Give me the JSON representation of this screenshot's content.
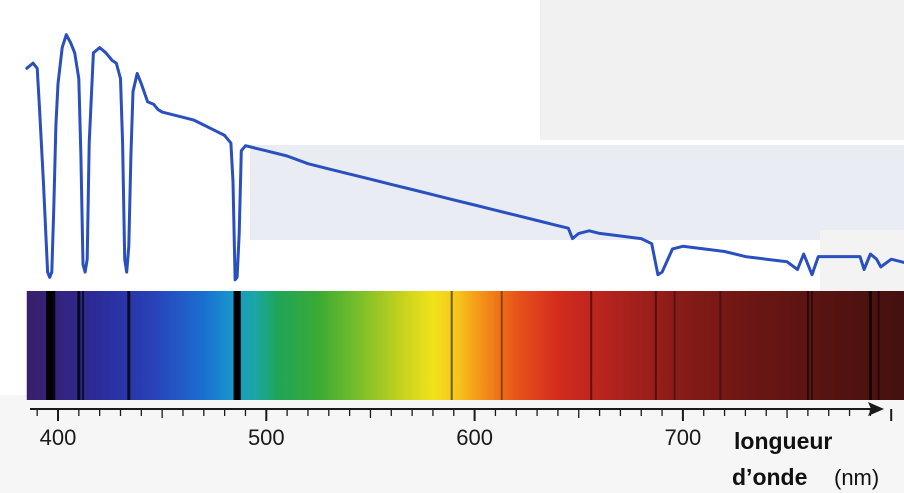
{
  "chart_data": {
    "type": "line",
    "xlim": [
      385,
      845
    ],
    "x_ticks": [
      400,
      500,
      600,
      700
    ],
    "x_tick_labels": [
      "400",
      "500",
      "600",
      "700"
    ],
    "xlabel": {
      "bold": "longueur d’onde",
      "unit": "(nm)"
    },
    "line_color": "#2a4fbf",
    "series": [
      {
        "x": [
          385,
          388,
          390,
          391,
          393,
          395,
          396,
          397,
          398,
          399,
          400,
          402,
          404,
          406,
          408,
          410,
          411,
          412,
          413,
          414,
          415,
          417,
          420,
          423,
          426,
          428,
          430,
          431,
          432,
          433,
          434,
          435,
          436,
          438,
          440,
          443,
          446,
          448,
          450,
          455,
          460,
          465,
          470,
          475,
          480,
          483,
          484,
          485,
          486,
          487,
          488,
          490,
          495,
          500,
          510,
          520,
          530,
          540,
          550,
          560,
          570,
          580,
          590,
          600,
          610,
          620,
          630,
          640,
          645,
          647,
          650,
          655,
          660,
          670,
          680,
          685,
          688,
          690,
          695,
          700,
          710,
          720,
          730,
          740,
          750,
          755,
          758,
          760,
          762,
          765,
          770,
          775,
          780,
          785,
          787,
          790,
          793,
          795,
          800,
          805,
          810,
          815,
          820,
          825,
          830,
          834,
          836,
          838,
          840,
          842,
          845
        ],
        "y": [
          84,
          86,
          84,
          70,
          40,
          5,
          3,
          5,
          30,
          62,
          78,
          92,
          97,
          94,
          90,
          80,
          50,
          8,
          5,
          10,
          55,
          90,
          92,
          90,
          87,
          86,
          80,
          55,
          10,
          5,
          15,
          50,
          75,
          82,
          78,
          71,
          70,
          68,
          67,
          66,
          65,
          64,
          62,
          60,
          58,
          55,
          40,
          2,
          3,
          20,
          52,
          54,
          53,
          52,
          50,
          47,
          45,
          43,
          41,
          39,
          37,
          35,
          33,
          31,
          29,
          27,
          25,
          23,
          22,
          18,
          20,
          21,
          20,
          19,
          18,
          16,
          4,
          5,
          14,
          15,
          14,
          13,
          11,
          10,
          9,
          6,
          12,
          8,
          4,
          11,
          11,
          11,
          11,
          11,
          6,
          12,
          10,
          7,
          10,
          9,
          8,
          8,
          7,
          6,
          4,
          0,
          2,
          1,
          6,
          5,
          6
        ]
      }
    ],
    "spectrum": {
      "x_start": 385,
      "x_end": 845,
      "absorption_lines": [
        {
          "nm": 396,
          "strength": 0.95
        },
        {
          "nm": 398,
          "strength": 0.6
        },
        {
          "nm": 410,
          "strength": 0.55
        },
        {
          "nm": 412,
          "strength": 0.4
        },
        {
          "nm": 434,
          "strength": 0.55
        },
        {
          "nm": 486,
          "strength": 0.95
        },
        {
          "nm": 487,
          "strength": 0.7
        },
        {
          "nm": 589,
          "strength": 0.3
        },
        {
          "nm": 613,
          "strength": 0.15
        },
        {
          "nm": 656,
          "strength": 0.25
        },
        {
          "nm": 687,
          "strength": 0.2
        },
        {
          "nm": 696,
          "strength": 0.1
        },
        {
          "nm": 718,
          "strength": 0.1
        },
        {
          "nm": 760,
          "strength": 0.35
        },
        {
          "nm": 762,
          "strength": 0.2
        },
        {
          "nm": 790,
          "strength": 0.5
        },
        {
          "nm": 794,
          "strength": 0.25
        },
        {
          "nm": 822,
          "strength": 0.45
        },
        {
          "nm": 825,
          "strength": 0.35
        },
        {
          "nm": 829,
          "strength": 0.5
        }
      ]
    }
  }
}
